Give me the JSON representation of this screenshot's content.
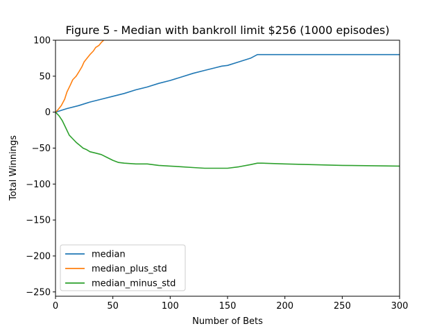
{
  "chart_data": {
    "type": "line",
    "title": "Figure 5 - Median with bankroll limit $256 (1000 episodes)",
    "xlabel": "Number of Bets",
    "ylabel": "Total Winnings",
    "xlim": [
      0,
      300
    ],
    "ylim": [
      -256,
      100
    ],
    "xticks": [
      0,
      50,
      100,
      150,
      200,
      250,
      300
    ],
    "xtick_labels": [
      "0",
      "50",
      "100",
      "150",
      "200",
      "250",
      "300"
    ],
    "yticks": [
      100,
      50,
      0,
      -50,
      -100,
      -150,
      -200,
      -250
    ],
    "ytick_labels": [
      "100",
      "50",
      "0",
      "−50",
      "−100",
      "−150",
      "−200",
      "−250"
    ],
    "grid": false,
    "legend_position": "lower-left",
    "series": [
      {
        "name": "median",
        "color": "#1f77b4",
        "x": [
          0,
          10,
          20,
          30,
          40,
          50,
          60,
          70,
          80,
          90,
          100,
          110,
          120,
          130,
          140,
          145,
          150,
          160,
          170,
          176,
          177,
          200,
          250,
          300
        ],
        "y": [
          0,
          5,
          9,
          14,
          18,
          22,
          26,
          31,
          35,
          40,
          44,
          49,
          54,
          58,
          62,
          64,
          65,
          70,
          75,
          80,
          80,
          80,
          80,
          80
        ]
      },
      {
        "name": "median_plus_std",
        "color": "#ff7f0e",
        "x": [
          0,
          2,
          5,
          8,
          10,
          13,
          15,
          18,
          20,
          23,
          25,
          28,
          30,
          33,
          35,
          38,
          40,
          42,
          43
        ],
        "y": [
          0,
          3,
          9,
          18,
          28,
          38,
          45,
          50,
          55,
          63,
          70,
          76,
          80,
          85,
          90,
          93,
          97,
          100,
          102
        ]
      },
      {
        "name": "median_minus_std",
        "color": "#2ca02c",
        "x": [
          0,
          3,
          6,
          9,
          12,
          15,
          18,
          21,
          24,
          27,
          30,
          35,
          40,
          45,
          50,
          55,
          60,
          70,
          80,
          90,
          100,
          110,
          120,
          130,
          140,
          150,
          160,
          170,
          176,
          180,
          200,
          250,
          300
        ],
        "y": [
          0,
          -5,
          -12,
          -22,
          -32,
          -37,
          -42,
          -46,
          -50,
          -52,
          -55,
          -57,
          -59,
          -63,
          -67,
          -70,
          -71,
          -72,
          -72,
          -74,
          -75,
          -76,
          -77,
          -78,
          -78,
          -78,
          -76,
          -73,
          -71,
          -71,
          -72,
          -74,
          -75
        ]
      }
    ]
  }
}
